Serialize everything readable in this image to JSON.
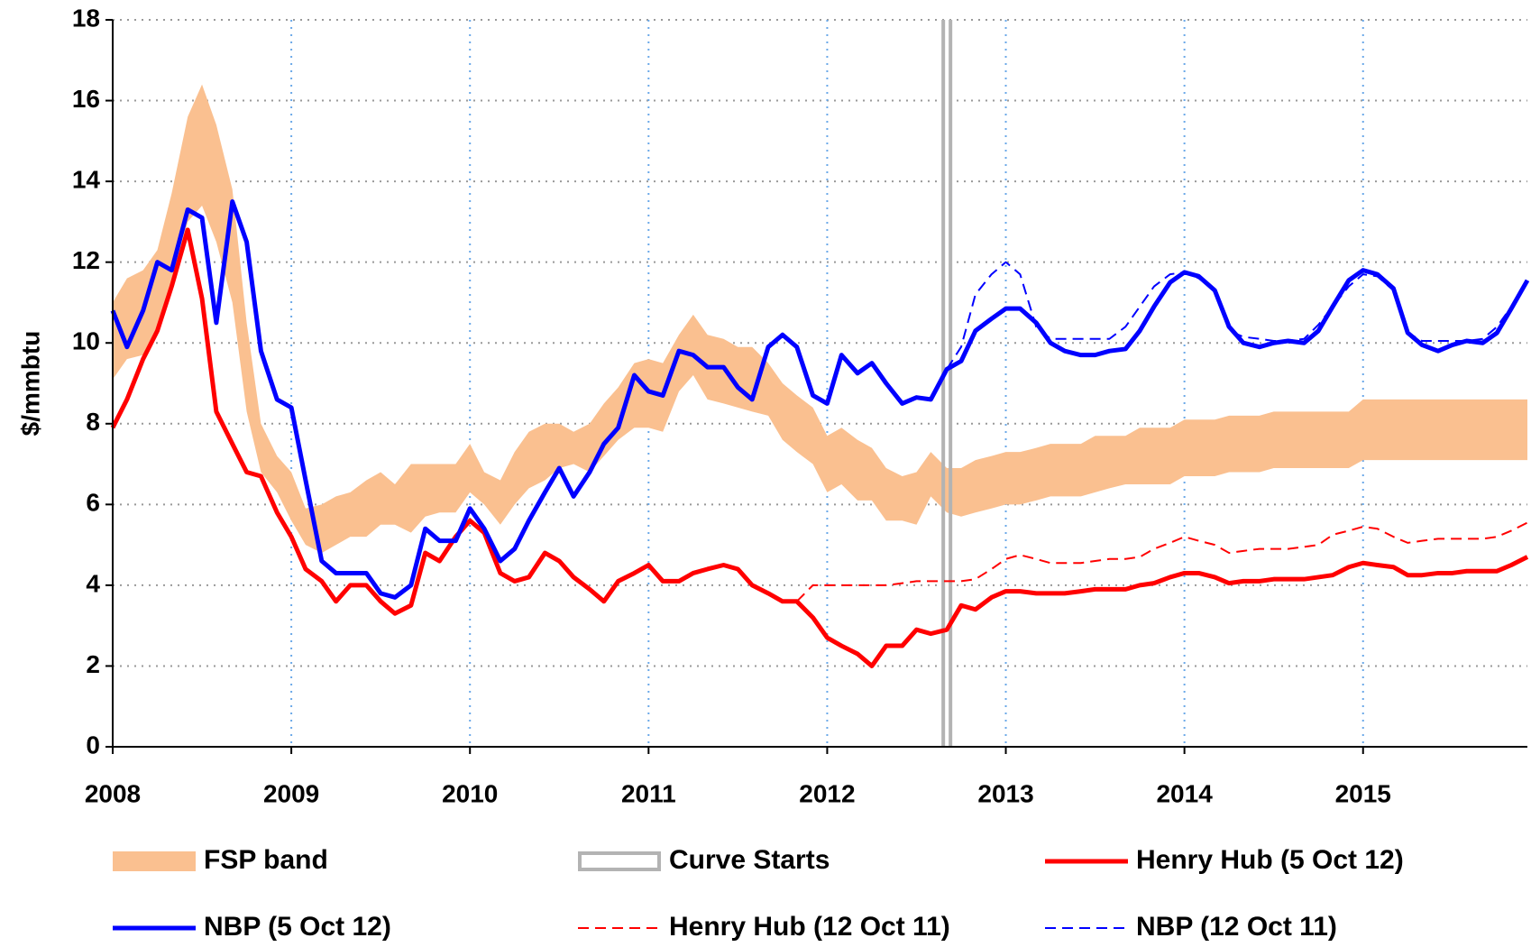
{
  "chart_data": {
    "type": "line",
    "y_label": "$/mmbtu",
    "xlim": [
      2008,
      2015.92
    ],
    "xticks": [
      2008,
      2009,
      2010,
      2011,
      2012,
      2013,
      2014,
      2015
    ],
    "ylim": [
      0,
      18
    ],
    "yticks": [
      0,
      2,
      4,
      6,
      8,
      10,
      12,
      14,
      16,
      18
    ],
    "grid": true,
    "x": [
      2008.0,
      2008.08,
      2008.17,
      2008.25,
      2008.33,
      2008.42,
      2008.5,
      2008.58,
      2008.67,
      2008.75,
      2008.83,
      2008.92,
      2009.0,
      2009.08,
      2009.17,
      2009.25,
      2009.33,
      2009.42,
      2009.5,
      2009.58,
      2009.67,
      2009.75,
      2009.83,
      2009.92,
      2010.0,
      2010.08,
      2010.17,
      2010.25,
      2010.33,
      2010.42,
      2010.5,
      2010.58,
      2010.67,
      2010.75,
      2010.83,
      2010.92,
      2011.0,
      2011.08,
      2011.17,
      2011.25,
      2011.33,
      2011.42,
      2011.5,
      2011.58,
      2011.67,
      2011.75,
      2011.83,
      2011.92,
      2012.0,
      2012.08,
      2012.17,
      2012.25,
      2012.33,
      2012.42,
      2012.5,
      2012.58,
      2012.67,
      2012.75,
      2012.83,
      2012.92,
      2013.0,
      2013.08,
      2013.17,
      2013.25,
      2013.33,
      2013.42,
      2013.5,
      2013.58,
      2013.67,
      2013.75,
      2013.83,
      2013.92,
      2014.0,
      2014.08,
      2014.17,
      2014.25,
      2014.33,
      2014.42,
      2014.5,
      2014.58,
      2014.67,
      2014.75,
      2014.83,
      2014.92,
      2015.0,
      2015.08,
      2015.17,
      2015.25,
      2015.33,
      2015.42,
      2015.5,
      2015.58,
      2015.67,
      2015.75,
      2015.83,
      2015.92
    ],
    "series": [
      {
        "name": "FSP band",
        "style": "band",
        "color": "#fac090",
        "high": [
          11.0,
          11.6,
          11.8,
          12.3,
          13.7,
          15.6,
          16.4,
          15.4,
          13.8,
          10.5,
          8.0,
          7.2,
          6.8,
          5.9,
          6.0,
          6.2,
          6.3,
          6.6,
          6.8,
          6.5,
          7.0,
          7.0,
          7.0,
          7.0,
          7.5,
          6.8,
          6.6,
          7.3,
          7.8,
          8.0,
          8.0,
          7.8,
          8.0,
          8.5,
          8.9,
          9.5,
          9.6,
          9.5,
          10.2,
          10.7,
          10.2,
          10.1,
          9.9,
          9.9,
          9.5,
          9.0,
          8.7,
          8.4,
          7.7,
          7.9,
          7.6,
          7.4,
          6.9,
          6.7,
          6.8,
          7.3,
          6.9,
          6.9,
          7.1,
          7.2,
          7.3,
          7.3,
          7.4,
          7.5,
          7.5,
          7.5,
          7.7,
          7.7,
          7.7,
          7.9,
          7.9,
          7.9,
          8.1,
          8.1,
          8.1,
          8.2,
          8.2,
          8.2,
          8.3,
          8.3,
          8.3,
          8.3,
          8.3,
          8.3,
          8.6,
          8.6,
          8.6,
          8.6,
          8.6,
          8.6,
          8.6,
          8.6,
          8.6,
          8.6,
          8.6,
          8.6
        ],
        "low": [
          9.1,
          9.6,
          9.7,
          10.4,
          11.5,
          13.0,
          13.4,
          12.5,
          11.0,
          8.3,
          6.8,
          6.3,
          5.6,
          5.0,
          4.8,
          5.0,
          5.2,
          5.2,
          5.5,
          5.5,
          5.3,
          5.7,
          5.8,
          5.8,
          6.3,
          6.0,
          5.5,
          6.0,
          6.4,
          6.6,
          6.9,
          7.0,
          6.8,
          7.2,
          7.6,
          7.9,
          7.9,
          7.8,
          8.8,
          9.2,
          8.6,
          8.5,
          8.4,
          8.3,
          8.2,
          7.6,
          7.3,
          7.0,
          6.3,
          6.5,
          6.1,
          6.1,
          5.6,
          5.6,
          5.5,
          6.2,
          5.8,
          5.7,
          5.8,
          5.9,
          6.0,
          6.0,
          6.1,
          6.2,
          6.2,
          6.2,
          6.3,
          6.4,
          6.5,
          6.5,
          6.5,
          6.5,
          6.7,
          6.7,
          6.7,
          6.8,
          6.8,
          6.8,
          6.9,
          6.9,
          6.9,
          6.9,
          6.9,
          6.9,
          7.1,
          7.1,
          7.1,
          7.1,
          7.1,
          7.1,
          7.1,
          7.1,
          7.1,
          7.1,
          7.1,
          7.1
        ]
      },
      {
        "name": "Curve Starts",
        "style": "vline",
        "color": "#b3b3b3",
        "at": 2012.67
      },
      {
        "name": "Henry Hub (5 Oct 12)",
        "style": "solid",
        "color": "#ff0000",
        "values": [
          7.9,
          8.6,
          9.6,
          10.3,
          11.4,
          12.8,
          11.1,
          8.3,
          7.5,
          6.8,
          6.7,
          5.8,
          5.2,
          4.4,
          4.1,
          3.6,
          4.0,
          4.0,
          3.6,
          3.3,
          3.5,
          4.8,
          4.6,
          5.2,
          5.6,
          5.3,
          4.3,
          4.1,
          4.2,
          4.8,
          4.6,
          4.2,
          3.9,
          3.6,
          4.1,
          4.3,
          4.5,
          4.1,
          4.1,
          4.3,
          4.4,
          4.5,
          4.4,
          4.0,
          3.8,
          3.6,
          3.6,
          3.2,
          2.7,
          2.5,
          2.3,
          2.0,
          2.5,
          2.5,
          2.9,
          2.8,
          2.9,
          3.5,
          3.4,
          3.7,
          3.85,
          3.85,
          3.8,
          3.8,
          3.8,
          3.85,
          3.9,
          3.9,
          3.9,
          4.0,
          4.05,
          4.2,
          4.3,
          4.3,
          4.2,
          4.05,
          4.1,
          4.1,
          4.15,
          4.15,
          4.15,
          4.2,
          4.25,
          4.45,
          4.55,
          4.5,
          4.45,
          4.25,
          4.25,
          4.3,
          4.3,
          4.35,
          4.35,
          4.35,
          4.5,
          4.7
        ]
      },
      {
        "name": "NBP (5 Oct 12)",
        "style": "solid",
        "color": "#0000ff",
        "values": [
          10.8,
          9.9,
          10.8,
          12.0,
          11.8,
          13.3,
          13.1,
          10.5,
          13.5,
          12.5,
          9.8,
          8.6,
          8.4,
          6.6,
          4.6,
          4.3,
          4.3,
          4.3,
          3.8,
          3.7,
          4.0,
          5.4,
          5.1,
          5.1,
          5.9,
          5.4,
          4.6,
          4.9,
          5.6,
          6.3,
          6.9,
          6.2,
          6.8,
          7.5,
          7.9,
          9.2,
          8.8,
          8.7,
          9.8,
          9.7,
          9.4,
          9.4,
          8.9,
          8.6,
          9.9,
          10.2,
          9.9,
          8.7,
          8.5,
          9.7,
          9.25,
          9.5,
          9.0,
          8.5,
          8.65,
          8.6,
          9.35,
          9.55,
          10.3,
          10.6,
          10.85,
          10.85,
          10.5,
          10.0,
          9.8,
          9.7,
          9.7,
          9.8,
          9.85,
          10.3,
          10.9,
          11.5,
          11.75,
          11.65,
          11.3,
          10.4,
          10.0,
          9.9,
          10.0,
          10.05,
          10.0,
          10.3,
          10.9,
          11.55,
          11.8,
          11.7,
          11.35,
          10.25,
          9.95,
          9.8,
          9.95,
          10.05,
          10.0,
          10.25,
          10.85,
          11.55
        ]
      },
      {
        "name": "Henry Hub (12 Oct 11)",
        "style": "dashed",
        "color": "#ff0000",
        "values": [
          null,
          null,
          null,
          null,
          null,
          null,
          null,
          null,
          null,
          null,
          null,
          null,
          null,
          null,
          null,
          null,
          null,
          null,
          null,
          null,
          null,
          null,
          null,
          null,
          null,
          null,
          null,
          null,
          null,
          null,
          null,
          null,
          null,
          null,
          null,
          null,
          null,
          null,
          null,
          null,
          null,
          null,
          null,
          null,
          null,
          null,
          3.6,
          4.0,
          4.0,
          4.0,
          4.0,
          4.0,
          4.0,
          4.05,
          4.1,
          4.1,
          4.1,
          4.1,
          4.15,
          4.4,
          4.65,
          4.75,
          4.65,
          4.55,
          4.55,
          4.55,
          4.6,
          4.65,
          4.65,
          4.7,
          4.9,
          5.05,
          5.2,
          5.1,
          5.0,
          4.8,
          4.85,
          4.9,
          4.9,
          4.9,
          4.95,
          5.0,
          5.25,
          5.35,
          5.45,
          5.4,
          5.2,
          5.05,
          5.1,
          5.15,
          5.15,
          5.15,
          5.15,
          5.2,
          5.35,
          5.55
        ]
      },
      {
        "name": "NBP (12 Oct 11)",
        "style": "dashed",
        "color": "#0000ff",
        "values": [
          null,
          null,
          null,
          null,
          null,
          null,
          null,
          null,
          null,
          null,
          null,
          null,
          null,
          null,
          null,
          null,
          null,
          null,
          null,
          null,
          null,
          null,
          null,
          null,
          null,
          null,
          null,
          null,
          null,
          null,
          null,
          null,
          null,
          null,
          null,
          null,
          null,
          null,
          null,
          null,
          null,
          null,
          null,
          null,
          null,
          null,
          null,
          null,
          null,
          null,
          null,
          null,
          null,
          null,
          null,
          null,
          9.35,
          9.9,
          11.2,
          11.7,
          12.0,
          11.7,
          10.4,
          10.1,
          10.1,
          10.1,
          10.1,
          10.1,
          10.4,
          10.9,
          11.4,
          11.7,
          11.75,
          11.6,
          11.3,
          10.3,
          10.15,
          10.1,
          10.05,
          10.05,
          10.1,
          10.45,
          10.9,
          11.4,
          11.7,
          11.65,
          11.3,
          10.25,
          10.05,
          10.05,
          10.05,
          10.05,
          10.1,
          10.4,
          10.9,
          11.5
        ]
      }
    ]
  }
}
